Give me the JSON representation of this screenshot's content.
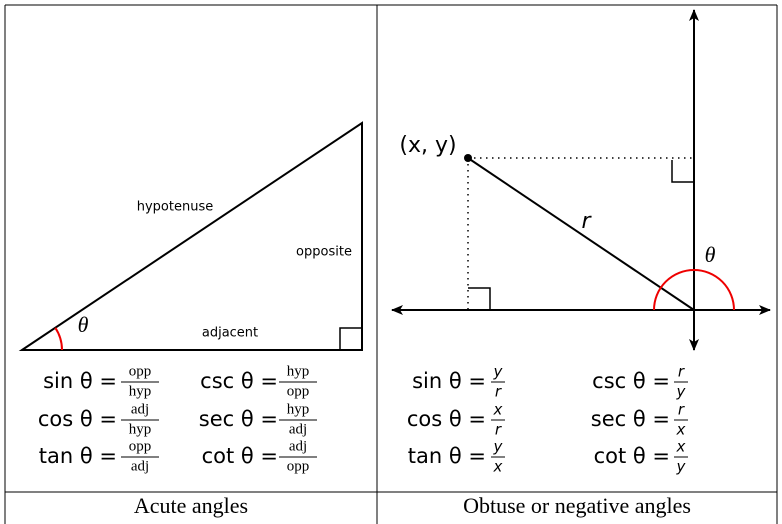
{
  "left": {
    "labels": {
      "hypotenuse": "hypotenuse",
      "opposite": "opposite",
      "adjacent": "adjacent",
      "theta": "θ"
    },
    "formulas": [
      {
        "lhs": "sin θ =",
        "num": "opp",
        "den": "hyp"
      },
      {
        "lhs": "csc θ =",
        "num": "hyp",
        "den": "opp"
      },
      {
        "lhs": "cos θ =",
        "num": "adj",
        "den": "hyp"
      },
      {
        "lhs": "sec θ =",
        "num": "hyp",
        "den": "adj"
      },
      {
        "lhs": "tan θ =",
        "num": "opp",
        "den": "adj"
      },
      {
        "lhs": "cot θ =",
        "num": "adj",
        "den": "opp"
      }
    ],
    "caption": "Acute angles"
  },
  "right": {
    "labels": {
      "point": "(x, y)",
      "r": "r",
      "theta": "θ"
    },
    "formulas": [
      {
        "lhs": "sin θ =",
        "num": "y",
        "den": "r"
      },
      {
        "lhs": "csc θ =",
        "num": "r",
        "den": "y"
      },
      {
        "lhs": "cos θ =",
        "num": "x",
        "den": "r"
      },
      {
        "lhs": "sec θ =",
        "num": "r",
        "den": "x"
      },
      {
        "lhs": "tan θ =",
        "num": "y",
        "den": "x"
      },
      {
        "lhs": "cot θ =",
        "num": "x",
        "den": "y"
      }
    ],
    "caption": "Obtuse or negative angles"
  }
}
